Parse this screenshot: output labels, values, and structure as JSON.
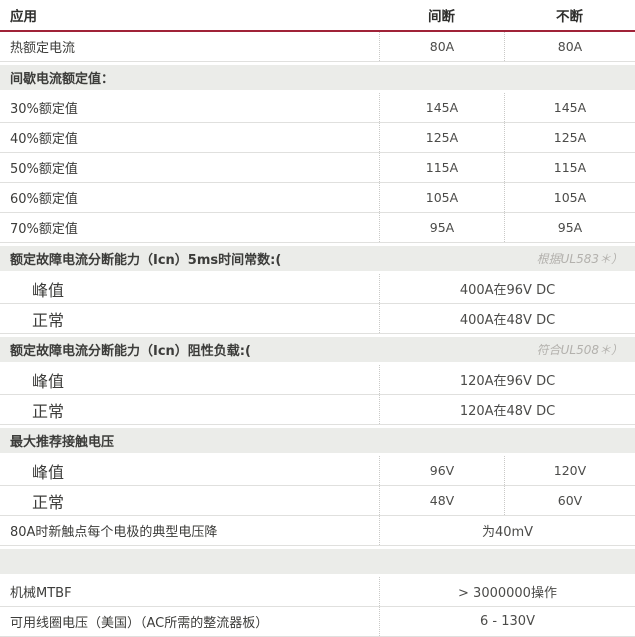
{
  "colors": {
    "accent_red": "#a02338",
    "band_bg": "#ebece9",
    "row_line": "#e0e0de",
    "dotted_line": "#c9c9c7",
    "text": "#3c3c3a",
    "value_text": "#4b4b49",
    "note_text": "#b3b1ad"
  },
  "header": {
    "col1": "应用",
    "col2": "间断",
    "col3": "不断"
  },
  "rows": [
    {
      "type": "row2",
      "label": "热额定电流",
      "values": [
        "80A",
        "80A"
      ]
    },
    {
      "type": "section",
      "label": "间歇电流额定值：",
      "note": ""
    },
    {
      "type": "row2",
      "label": "30%额定值",
      "values": [
        "145A",
        "145A"
      ]
    },
    {
      "type": "row2",
      "label": "40%额定值",
      "values": [
        "125A",
        "125A"
      ]
    },
    {
      "type": "row2",
      "label": "50%额定值",
      "values": [
        "115A",
        "115A"
      ]
    },
    {
      "type": "row2",
      "label": "60%额定值",
      "values": [
        "105A",
        "105A"
      ]
    },
    {
      "type": "row2",
      "label": "70%额定值",
      "values": [
        "95A",
        "95A"
      ]
    },
    {
      "type": "section",
      "label": "额定故障电流分断能力（Icn）5ms时间常数:(",
      "note": "根据UL583＊）"
    },
    {
      "type": "span",
      "label": "峰值",
      "big": true,
      "value": "400A在96V DC"
    },
    {
      "type": "span",
      "label": "正常",
      "big": true,
      "value": "400A在48V DC"
    },
    {
      "type": "section",
      "label": "额定故障电流分断能力（Icn）阻性负载:(",
      "note": "符合UL508＊）"
    },
    {
      "type": "span",
      "label": "峰值",
      "big": true,
      "value": "120A在96V DC"
    },
    {
      "type": "span",
      "label": "正常",
      "big": true,
      "value": "120A在48V DC"
    },
    {
      "type": "section",
      "label": "最大推荐接触电压",
      "note": ""
    },
    {
      "type": "row2",
      "label": "峰值",
      "big": true,
      "values": [
        "96V",
        "120V"
      ]
    },
    {
      "type": "row2",
      "label": "正常",
      "big": true,
      "values": [
        "48V",
        "60V"
      ]
    },
    {
      "type": "span",
      "label": "80A时新触点每个电极的典型电压降",
      "value": "为40mV"
    },
    {
      "type": "section",
      "label": "",
      "note": ""
    },
    {
      "type": "span",
      "label": "机械MTBF",
      "value": "> 3000000操作"
    },
    {
      "type": "span",
      "label": "可用线圈电压（美国）（AC所需的整流器板）",
      "value": "6 - 130V"
    }
  ]
}
